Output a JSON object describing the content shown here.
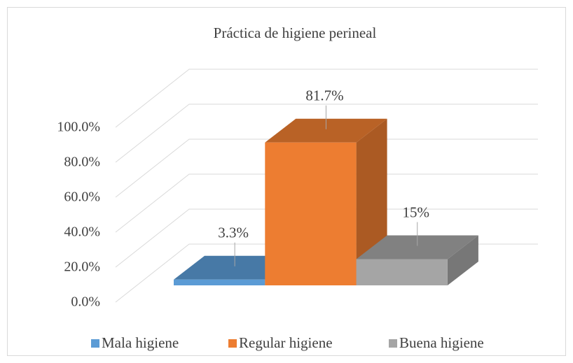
{
  "chart_data": {
    "type": "bar3d",
    "title": "Práctica de higiene perineal",
    "categories": [
      "Mala higiene",
      "Regular higiene",
      "Buena higiene"
    ],
    "values": [
      3.3,
      81.7,
      15
    ],
    "value_labels": [
      "3.3%",
      "81.7%",
      "15%"
    ],
    "colors": [
      "#5b9bd5",
      "#ed7d31",
      "#a5a5a5"
    ],
    "ylim": [
      0,
      100
    ],
    "yticks": [
      {
        "value": 0,
        "label": "0.0%"
      },
      {
        "value": 20,
        "label": "20.0%"
      },
      {
        "value": 40,
        "label": "40.0%"
      },
      {
        "value": 60,
        "label": "60.0%"
      },
      {
        "value": 80,
        "label": "80.0%"
      },
      {
        "value": 100,
        "label": "100.0%"
      }
    ],
    "grid": true,
    "legend": "bottom"
  }
}
